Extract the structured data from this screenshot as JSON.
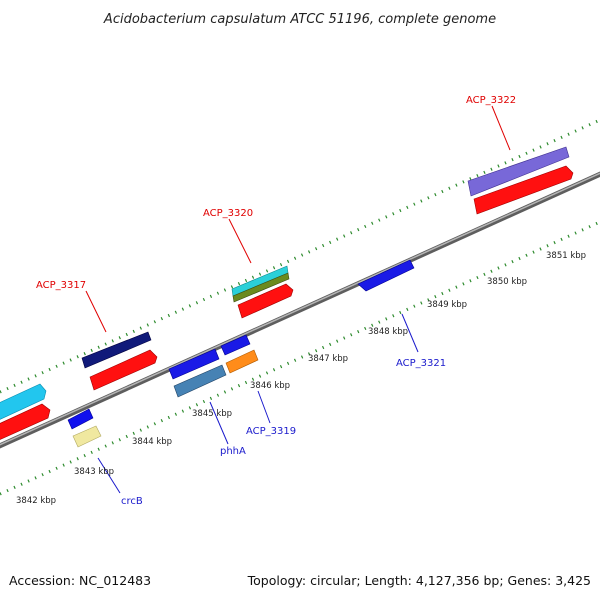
{
  "title": "Acidobacterium capsulatum ATCC 51196, complete genome",
  "accession": "Accession: NC_012483",
  "summary": "Topology: circular; Length: 4,127,356 bp; Genes: 3,425",
  "ticks": [
    {
      "label": "3842 kbp"
    },
    {
      "label": "3843 kbp"
    },
    {
      "label": "3844 kbp"
    },
    {
      "label": "3845 kbp"
    },
    {
      "label": "3846 kbp"
    },
    {
      "label": "3847 kbp"
    },
    {
      "label": "3848 kbp"
    },
    {
      "label": "3849 kbp"
    },
    {
      "label": "3850 kbp"
    },
    {
      "label": "3851 kbp"
    }
  ],
  "gene_labels": [
    {
      "name": "ACP_3322",
      "strand": "forward"
    },
    {
      "name": "ACP_3320",
      "strand": "forward"
    },
    {
      "name": "ACP_3317",
      "strand": "forward"
    },
    {
      "name": "ACP_3321",
      "strand": "reverse"
    },
    {
      "name": "ACP_3319",
      "strand": "reverse"
    },
    {
      "name": "phhA",
      "strand": "reverse"
    },
    {
      "name": "crcB",
      "strand": "reverse"
    }
  ],
  "colors": {
    "forward_label": "#e00000",
    "reverse_label": "#1a1acc",
    "cds": "#ff1010",
    "backbone": "#8a8a8a",
    "tick": "#2e8b2e"
  }
}
